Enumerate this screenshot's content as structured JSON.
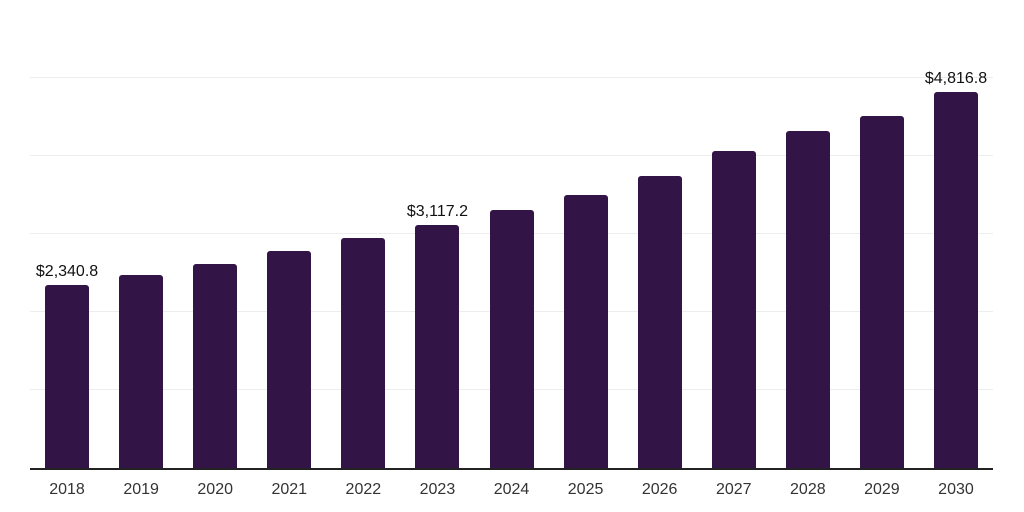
{
  "chart_data": {
    "type": "bar",
    "title": "",
    "xlabel": "",
    "ylabel": "",
    "categories": [
      "2018",
      "2019",
      "2020",
      "2021",
      "2022",
      "2023",
      "2024",
      "2025",
      "2026",
      "2027",
      "2028",
      "2029",
      "2030"
    ],
    "values": [
      2340.8,
      2470,
      2620,
      2780,
      2950,
      3117.2,
      3310,
      3500,
      3740,
      4060,
      4320,
      4515,
      4816.8
    ],
    "value_labels": {
      "2018": "$2,340.8",
      "2023": "$3,117.2",
      "2030": "$4,816.8"
    },
    "ylim": [
      0,
      6000
    ],
    "gridline_step": 1000,
    "grid": "horizontal",
    "legend_position": "none"
  },
  "style": {
    "bar_color": "#321447",
    "grid_color": "#ededed",
    "axis_color": "#222222",
    "value_label_color": "#111111",
    "tick_label_color": "#333333",
    "background_color": "#ffffff"
  }
}
